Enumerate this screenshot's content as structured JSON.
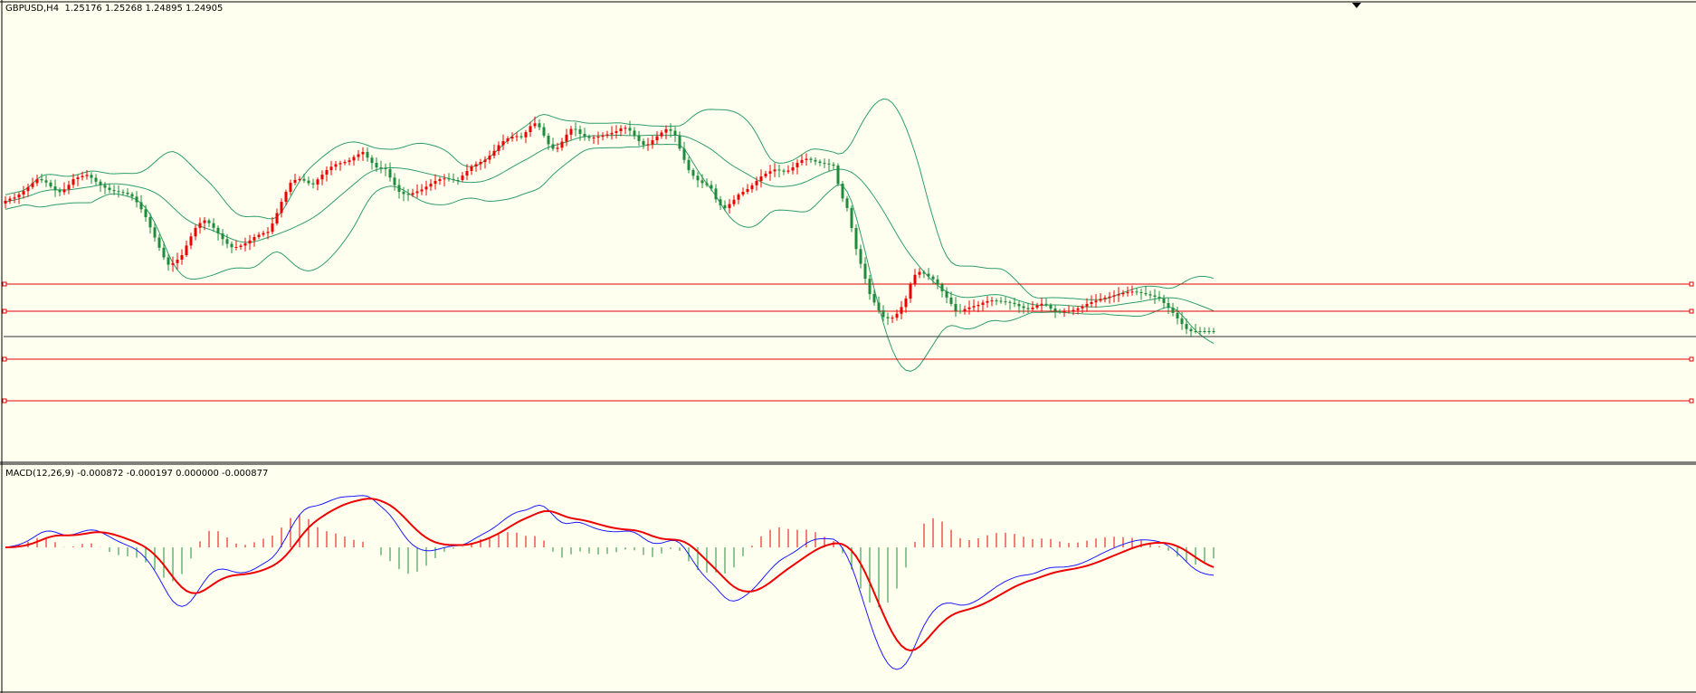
{
  "price_pane": {
    "symbol": "GBPUSD,H4",
    "ohlc": "1.25176 1.25268 1.24895 1.24905"
  },
  "macd_pane": {
    "name": "MACD(12,26,9)",
    "values": "-0.000872 -0.000197 0.000000 -0.000877"
  },
  "colors": {
    "background": "#fffff0",
    "bull_candle": "#ee0000",
    "bear_candle": "#1e8c3c",
    "bollinger": "#2e9e6a",
    "horizontal_line": "#e00000",
    "bid_line": "#333333",
    "macd_main": "#1a1aff",
    "macd_signal": "#ee0000",
    "hist_positive": "#e00000",
    "hist_negative": "#1e8c3c"
  },
  "chart_data": [
    {
      "type": "candlestick",
      "symbol": "GBPUSD",
      "timeframe": "H4",
      "indicators": [
        "Bollinger Bands"
      ],
      "last_bar": {
        "open": 1.25176,
        "high": 1.25268,
        "low": 1.24895,
        "close": 1.24905
      },
      "horizontal_lines": 4,
      "shape_points": [
        [
          0,
          225
        ],
        [
          8,
          220
        ],
        [
          16,
          218
        ],
        [
          24,
          212
        ],
        [
          32,
          205
        ],
        [
          40,
          198
        ],
        [
          48,
          200
        ],
        [
          56,
          207
        ],
        [
          64,
          213
        ],
        [
          72,
          208
        ],
        [
          80,
          198
        ],
        [
          88,
          195
        ],
        [
          96,
          193
        ],
        [
          104,
          200
        ],
        [
          112,
          206
        ],
        [
          120,
          210
        ],
        [
          128,
          212
        ],
        [
          136,
          213
        ],
        [
          144,
          216
        ],
        [
          152,
          226
        ],
        [
          160,
          240
        ],
        [
          168,
          258
        ],
        [
          176,
          276
        ],
        [
          184,
          293
        ],
        [
          192,
          290
        ],
        [
          200,
          282
        ],
        [
          208,
          265
        ],
        [
          216,
          250
        ],
        [
          224,
          243
        ],
        [
          232,
          248
        ],
        [
          240,
          258
        ],
        [
          248,
          268
        ],
        [
          256,
          274
        ],
        [
          264,
          272
        ],
        [
          272,
          268
        ],
        [
          280,
          262
        ],
        [
          288,
          258
        ],
        [
          296,
          256
        ],
        [
          304,
          238
        ],
        [
          312,
          218
        ],
        [
          320,
          202
        ],
        [
          328,
          197
        ],
        [
          336,
          200
        ],
        [
          344,
          205
        ],
        [
          352,
          196
        ],
        [
          360,
          188
        ],
        [
          368,
          182
        ],
        [
          376,
          180
        ],
        [
          384,
          178
        ],
        [
          392,
          172
        ],
        [
          400,
          168
        ],
        [
          408,
          178
        ],
        [
          416,
          186
        ],
        [
          424,
          185
        ],
        [
          432,
          200
        ],
        [
          440,
          212
        ],
        [
          448,
          216
        ],
        [
          456,
          213
        ],
        [
          464,
          210
        ],
        [
          472,
          205
        ],
        [
          480,
          200
        ],
        [
          488,
          197
        ],
        [
          496,
          198
        ],
        [
          504,
          200
        ],
        [
          512,
          192
        ],
        [
          520,
          184
        ],
        [
          528,
          180
        ],
        [
          536,
          176
        ],
        [
          544,
          168
        ],
        [
          552,
          158
        ],
        [
          560,
          153
        ],
        [
          568,
          150
        ],
        [
          576,
          152
        ],
        [
          584,
          140
        ],
        [
          592,
          135
        ],
        [
          600,
          150
        ],
        [
          608,
          165
        ],
        [
          616,
          163
        ],
        [
          624,
          150
        ],
        [
          632,
          140
        ],
        [
          640,
          148
        ],
        [
          648,
          153
        ],
        [
          656,
          152
        ],
        [
          664,
          150
        ],
        [
          672,
          148
        ],
        [
          680,
          145
        ],
        [
          688,
          140
        ],
        [
          696,
          145
        ],
        [
          704,
          155
        ],
        [
          712,
          162
        ],
        [
          720,
          155
        ],
        [
          728,
          148
        ],
        [
          736,
          142
        ],
        [
          744,
          147
        ],
        [
          752,
          170
        ],
        [
          760,
          188
        ],
        [
          768,
          198
        ],
        [
          776,
          203
        ],
        [
          784,
          206
        ],
        [
          792,
          225
        ],
        [
          800,
          230
        ],
        [
          808,
          223
        ],
        [
          816,
          214
        ],
        [
          824,
          210
        ],
        [
          832,
          203
        ],
        [
          840,
          195
        ],
        [
          848,
          190
        ],
        [
          856,
          187
        ],
        [
          864,
          190
        ],
        [
          872,
          188
        ],
        [
          880,
          180
        ],
        [
          888,
          175
        ],
        [
          896,
          177
        ],
        [
          904,
          180
        ],
        [
          912,
          181
        ],
        [
          920,
          183
        ],
        [
          928,
          215
        ],
        [
          936,
          232
        ],
        [
          944,
          272
        ],
        [
          952,
          298
        ],
        [
          960,
          325
        ],
        [
          968,
          340
        ],
        [
          976,
          352
        ],
        [
          984,
          352
        ],
        [
          992,
          345
        ],
        [
          1000,
          330
        ],
        [
          1008,
          305
        ],
        [
          1016,
          300
        ],
        [
          1024,
          305
        ],
        [
          1032,
          310
        ],
        [
          1040,
          322
        ],
        [
          1048,
          333
        ],
        [
          1056,
          345
        ],
        [
          1064,
          342
        ],
        [
          1072,
          339
        ],
        [
          1080,
          337
        ],
        [
          1088,
          333
        ],
        [
          1096,
          332
        ],
        [
          1104,
          333
        ],
        [
          1112,
          334
        ],
        [
          1120,
          336
        ],
        [
          1128,
          340
        ],
        [
          1136,
          342
        ],
        [
          1144,
          338
        ],
        [
          1152,
          335
        ],
        [
          1160,
          341
        ],
        [
          1168,
          345
        ],
        [
          1176,
          344
        ],
        [
          1184,
          343
        ],
        [
          1192,
          340
        ],
        [
          1200,
          336
        ],
        [
          1208,
          333
        ],
        [
          1216,
          330
        ],
        [
          1224,
          328
        ],
        [
          1232,
          326
        ],
        [
          1240,
          324
        ],
        [
          1248,
          322
        ],
        [
          1256,
          323
        ],
        [
          1264,
          325
        ],
        [
          1272,
          327
        ],
        [
          1280,
          330
        ],
        [
          1288,
          338
        ],
        [
          1296,
          347
        ],
        [
          1304,
          357
        ],
        [
          1312,
          366
        ]
      ]
    },
    {
      "type": "macd",
      "params": [
        12,
        26,
        9
      ],
      "main": -0.000872,
      "signal": -0.000197,
      "value3": 0.0,
      "value4": -0.000877
    }
  ]
}
